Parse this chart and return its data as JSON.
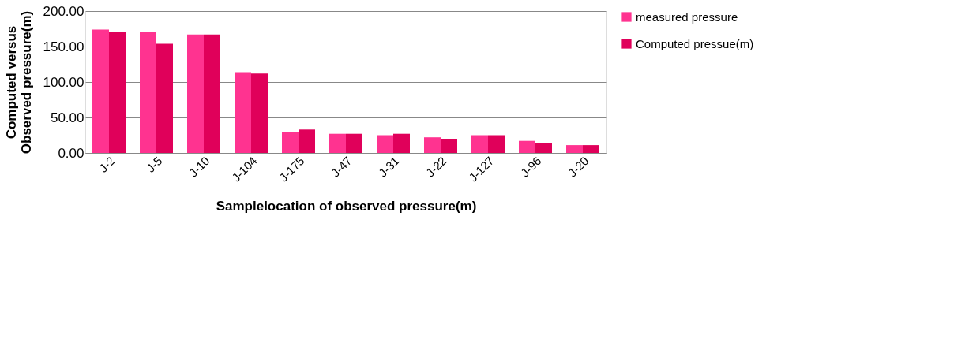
{
  "chart_data": {
    "type": "bar",
    "xlabel": "Samplelocation  of observed pressure(m)",
    "ylabel": "Computed versus\nObserved pressure(m)",
    "categories": [
      "J-2",
      "J-5",
      "J-10",
      "J-104",
      "J-175",
      "J-47",
      "J-31",
      "J-22",
      "J-127",
      "J-96",
      "J-20"
    ],
    "series": [
      {
        "name": "measured pressure",
        "color": "#ff3390",
        "values": [
          174,
          170,
          167,
          114,
          30,
          27,
          25,
          22,
          25,
          17,
          11
        ]
      },
      {
        "name": "Computed pressue(m)",
        "color": "#e0005a",
        "values": [
          170,
          154,
          167,
          112,
          33,
          27,
          27,
          20,
          25,
          14,
          11
        ]
      }
    ],
    "ylim": [
      0,
      200
    ],
    "yticks": [
      {
        "value": 0,
        "label": "0.00"
      },
      {
        "value": 50,
        "label": "50.00"
      },
      {
        "value": 100,
        "label": "100.00"
      },
      {
        "value": 150,
        "label": "150.00"
      },
      {
        "value": 200,
        "label": "200.00"
      }
    ],
    "grid": "y",
    "legend": "right"
  }
}
